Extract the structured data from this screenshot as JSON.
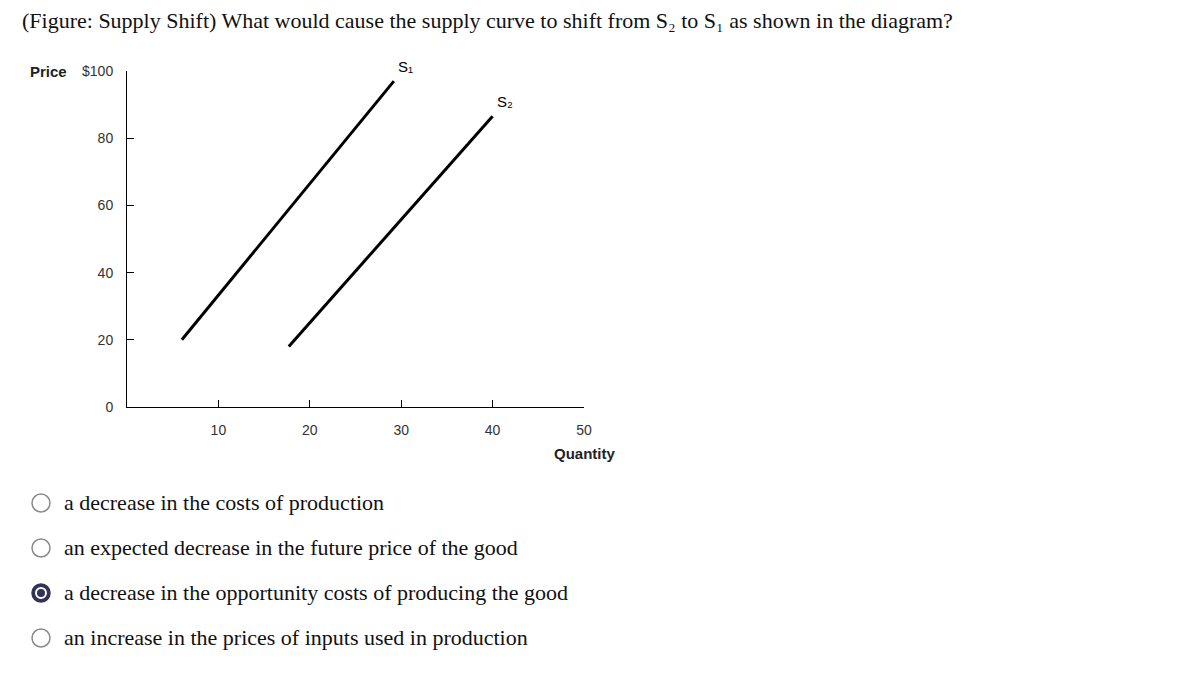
{
  "question": "(Figure: Supply Shift) What would cause the supply curve to shift from S₂ to S₁ as shown in the diagram?",
  "chart_data": {
    "type": "line",
    "x_label": "Quantity",
    "y_label": "Price",
    "xlim": [
      0,
      50
    ],
    "xticks": [
      10,
      20,
      30,
      40,
      50
    ],
    "ylim": [
      0,
      100
    ],
    "yticks": [
      0,
      20,
      40,
      60,
      80,
      {
        "value": 100,
        "label": "$100"
      }
    ],
    "grid": false,
    "series": [
      {
        "name": "S₁",
        "color": "#000000",
        "x": [
          6,
          29.2
        ],
        "values": [
          20,
          97
        ]
      },
      {
        "name": "S₂",
        "color": "#000000",
        "x": [
          17.7,
          40
        ],
        "values": [
          18,
          86.5
        ]
      }
    ]
  },
  "options": [
    {
      "text": "a decrease in the costs of production",
      "selected": false
    },
    {
      "text": "an expected decrease in the future price of the good",
      "selected": false
    },
    {
      "text": "a decrease in the opportunity costs of producing the good",
      "selected": true
    },
    {
      "text": "an increase in the prices of inputs used in production",
      "selected": false
    }
  ]
}
